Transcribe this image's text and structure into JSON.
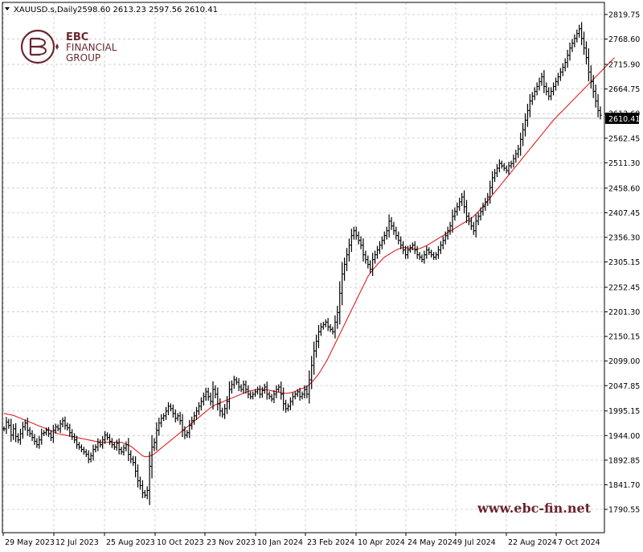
{
  "header": {
    "symbol": "XAUUSD.s,Daily",
    "ohlc": "2598.60 2613.23 2597.56 2610.41"
  },
  "logo": {
    "line1": "EBC",
    "line2": "FINANCIAL",
    "line3": "GROUP",
    "color": "#6b2630"
  },
  "watermark": "www.ebc-fin.net",
  "colors": {
    "candle": "#000000",
    "ma": "#e02020",
    "grid": "#c8c8c8"
  },
  "chart_data": {
    "type": "bar",
    "y_ticks": [
      2819.75,
      2768.6,
      2715.9,
      2664.75,
      2613.6,
      2562.45,
      2511.3,
      2458.6,
      2407.45,
      2356.3,
      2305.15,
      2252.45,
      2201.3,
      2150.15,
      2099.0,
      2047.85,
      1995.15,
      1944.0,
      1892.85,
      1841.7,
      1790.55
    ],
    "x_ticks": [
      "29 May 2023",
      "12 Jul 2023",
      "25 Aug 2023",
      "10 Oct 2023",
      "23 Nov 2023",
      "10 Jan 2024",
      "23 Feb 2024",
      "10 Apr 2024",
      "24 May 2024",
      "9 Jul 2024",
      "22 Aug 2024",
      "7 Oct 2024"
    ],
    "ylim": [
      1780,
      2830
    ],
    "current_price": "2610.41",
    "grid": true,
    "series": [
      {
        "values": [
          1958,
          1972,
          1965,
          1945,
          1958,
          1942,
          1935,
          1948,
          1962,
          1970,
          1955,
          1948,
          1940,
          1932,
          1925,
          1935,
          1948,
          1950,
          1955,
          1948,
          1940,
          1955,
          1962,
          1958,
          1968,
          1975,
          1965,
          1960,
          1950,
          1942,
          1935,
          1925,
          1920,
          1915,
          1910,
          1905,
          1895,
          1902,
          1915,
          1920,
          1930,
          1925,
          1935,
          1945,
          1940,
          1932,
          1925,
          1920,
          1928,
          1915,
          1910,
          1918,
          1925,
          1905,
          1895,
          1888,
          1870,
          1850,
          1840,
          1825,
          1820,
          1830,
          1880,
          1920,
          1930,
          1955,
          1970,
          1980,
          1985,
          1995,
          2005,
          2000,
          1990,
          1980,
          1985,
          1975,
          1955,
          1945,
          1950,
          1965,
          1975,
          1985,
          1995,
          2005,
          2015,
          2025,
          2035,
          2025,
          2015,
          2040,
          2030,
          2010,
          1995,
          1988,
          2000,
          2015,
          2040,
          2050,
          2060,
          2055,
          2045,
          2040,
          2050,
          2040,
          2030,
          2025,
          2030,
          2035,
          2040,
          2030,
          2038,
          2045,
          2030,
          2025,
          2020,
          2030,
          2040,
          2045,
          2030,
          2010,
          2000,
          2005,
          2015,
          2025,
          2030,
          2035,
          2025,
          2030,
          2040,
          2030,
          2060,
          2090,
          2120,
          2140,
          2160,
          2170,
          2175,
          2180,
          2170,
          2165,
          2160,
          2180,
          2200,
          2240,
          2280,
          2300,
          2320,
          2340,
          2360,
          2370,
          2360,
          2350,
          2340,
          2320,
          2310,
          2300,
          2290,
          2310,
          2320,
          2330,
          2340,
          2350,
          2360,
          2370,
          2390,
          2380,
          2370,
          2360,
          2350,
          2340,
          2330,
          2320,
          2330,
          2335,
          2340,
          2330,
          2320,
          2315,
          2310,
          2320,
          2330,
          2325,
          2320,
          2315,
          2320,
          2330,
          2340,
          2350,
          2360,
          2370,
          2380,
          2400,
          2410,
          2420,
          2430,
          2440,
          2420,
          2400,
          2390,
          2380,
          2370,
          2390,
          2400,
          2410,
          2420,
          2430,
          2440,
          2460,
          2480,
          2490,
          2500,
          2510,
          2505,
          2500,
          2495,
          2505,
          2510,
          2520,
          2530,
          2540,
          2560,
          2580,
          2600,
          2620,
          2640,
          2650,
          2660,
          2670,
          2680,
          2690,
          2670,
          2660,
          2650,
          2660,
          2670,
          2680,
          2690,
          2700,
          2710,
          2720,
          2735,
          2750,
          2760,
          2770,
          2780,
          2790,
          2770,
          2750,
          2730,
          2700,
          2680,
          2660,
          2640,
          2620,
          2610
        ]
      },
      {
        "values": [
          1990,
          1989,
          1988,
          1987,
          1986,
          1984,
          1982,
          1980,
          1978,
          1976,
          1974,
          1972,
          1970,
          1968,
          1966,
          1964,
          1962,
          1960,
          1958,
          1956,
          1954,
          1952,
          1950,
          1948,
          1947,
          1946,
          1945,
          1944,
          1943,
          1942,
          1941,
          1940,
          1939,
          1938,
          1937,
          1936,
          1935,
          1934,
          1933,
          1932,
          1931,
          1930,
          1930,
          1930,
          1930,
          1930,
          1930,
          1930,
          1930,
          1930,
          1930,
          1928,
          1926,
          1924,
          1922,
          1918,
          1914,
          1910,
          1906,
          1902,
          1900,
          1900,
          1901,
          1903,
          1906,
          1910,
          1914,
          1918,
          1922,
          1926,
          1930,
          1934,
          1938,
          1942,
          1946,
          1950,
          1954,
          1958,
          1962,
          1966,
          1970,
          1974,
          1978,
          1982,
          1986,
          1990,
          1994,
          1998,
          2002,
          2005,
          2008,
          2010,
          2012,
          2014,
          2016,
          2018,
          2020,
          2022,
          2024,
          2026,
          2028,
          2030,
          2032,
          2034,
          2036,
          2037,
          2038,
          2039,
          2040,
          2040,
          2040,
          2040,
          2039,
          2038,
          2037,
          2036,
          2035,
          2034,
          2033,
          2032,
          2032,
          2032,
          2033,
          2034,
          2036,
          2038,
          2040,
          2042,
          2044,
          2046,
          2050,
          2055,
          2060,
          2066,
          2072,
          2080,
          2088,
          2096,
          2105,
          2115,
          2125,
          2135,
          2145,
          2155,
          2165,
          2175,
          2185,
          2195,
          2205,
          2215,
          2225,
          2235,
          2245,
          2255,
          2265,
          2275,
          2282,
          2288,
          2294,
          2300,
          2305,
          2310,
          2315,
          2318,
          2321,
          2324,
          2327,
          2330,
          2332,
          2334,
          2335,
          2335,
          2334,
          2333,
          2332,
          2332,
          2332,
          2333,
          2335,
          2337,
          2339,
          2342,
          2345,
          2348,
          2351,
          2354,
          2357,
          2360,
          2363,
          2366,
          2369,
          2372,
          2375,
          2378,
          2381,
          2384,
          2387,
          2390,
          2393,
          2396,
          2400,
          2405,
          2410,
          2415,
          2420,
          2426,
          2432,
          2438,
          2444,
          2450,
          2456,
          2462,
          2468,
          2474,
          2480,
          2486,
          2492,
          2498,
          2504,
          2510,
          2516,
          2522,
          2528,
          2534,
          2540,
          2546,
          2552,
          2558,
          2564,
          2570,
          2576,
          2582,
          2588,
          2594,
          2600,
          2605,
          2610,
          2615,
          2620,
          2625,
          2630,
          2635,
          2640,
          2645,
          2650,
          2655,
          2660,
          2665,
          2670,
          2675,
          2680,
          2685,
          2690,
          2695,
          2700,
          2705,
          2710,
          2715,
          2720,
          2725,
          2730
        ]
      }
    ]
  }
}
